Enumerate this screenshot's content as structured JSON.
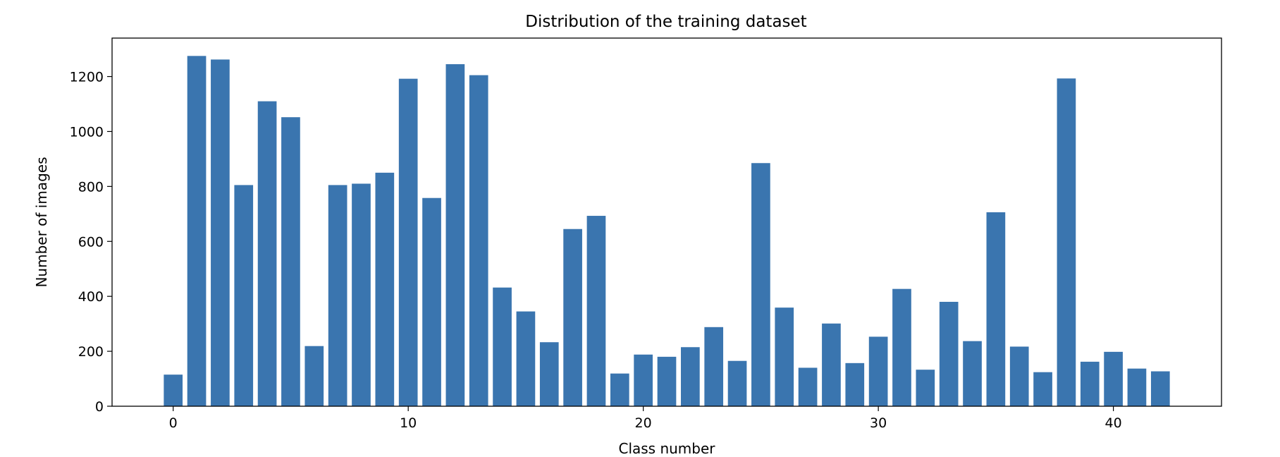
{
  "chart_data": {
    "type": "bar",
    "title": "Distribution of the training dataset",
    "xlabel": "Class number",
    "ylabel": "Number of images",
    "x": [
      0,
      1,
      2,
      3,
      4,
      5,
      6,
      7,
      8,
      9,
      10,
      11,
      12,
      13,
      14,
      15,
      16,
      17,
      18,
      19,
      20,
      21,
      22,
      23,
      24,
      25,
      26,
      27,
      28,
      29,
      30,
      31,
      32,
      33,
      34,
      35,
      36,
      37,
      38,
      39,
      40,
      41,
      42
    ],
    "values": [
      115,
      1275,
      1262,
      805,
      1110,
      1052,
      219,
      805,
      810,
      850,
      1192,
      758,
      1245,
      1205,
      432,
      345,
      233,
      645,
      693,
      119,
      188,
      180,
      215,
      288,
      165,
      885,
      359,
      140,
      301,
      157,
      253,
      427,
      133,
      380,
      237,
      706,
      217,
      124,
      1193,
      162,
      198,
      137,
      127
    ],
    "xlim": [
      -2.6,
      44.6
    ],
    "ylim": [
      0,
      1340
    ],
    "x_ticks": [
      0,
      10,
      20,
      30,
      40
    ],
    "y_ticks": [
      0,
      200,
      400,
      600,
      800,
      1000,
      1200
    ],
    "bar_color": "#3a75af",
    "grid": false
  }
}
